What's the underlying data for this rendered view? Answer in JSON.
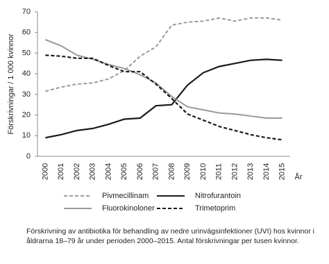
{
  "chart_data": {
    "type": "line",
    "y_label": "Förskrivningar / 1 000 kvinnor",
    "x_label": "År",
    "categories": [
      "2000",
      "2001",
      "2002",
      "2003",
      "2004",
      "2005",
      "2006",
      "2007",
      "2008",
      "2009",
      "2010",
      "2011",
      "2012",
      "2013",
      "2014",
      "2015"
    ],
    "ylim": [
      0,
      70
    ],
    "yticks": [
      0,
      10,
      20,
      30,
      40,
      50,
      60,
      70
    ],
    "series": [
      {
        "name": "Pivmecillinam",
        "color": "#999999",
        "dashed": true,
        "values": [
          31.5,
          33.5,
          35,
          35.5,
          37.5,
          41.5,
          48.5,
          53,
          63.5,
          65,
          65.5,
          67,
          65.5,
          67,
          67,
          66
        ]
      },
      {
        "name": "Nitrofurantoin",
        "color": "#1a1a1a",
        "dashed": false,
        "values": [
          9,
          10.5,
          12.5,
          13.5,
          15.5,
          18,
          18.5,
          24.5,
          25,
          34.5,
          40.5,
          43.5,
          45,
          46.5,
          47,
          46.5
        ]
      },
      {
        "name": "Fluorokinoloner",
        "color": "#999999",
        "dashed": false,
        "values": [
          56.5,
          53.5,
          49,
          47,
          44.5,
          42.5,
          39.5,
          35.5,
          29,
          24,
          22.5,
          21,
          20.5,
          19.5,
          18.5,
          18.5
        ]
      },
      {
        "name": "Trimetoprim",
        "color": "#1a1a1a",
        "dashed": true,
        "values": [
          49,
          48.5,
          47.5,
          47.5,
          44,
          41,
          41,
          35,
          28,
          20.5,
          17.5,
          14.5,
          12.5,
          10.5,
          9,
          8
        ]
      }
    ]
  },
  "caption": "Förskrivning av antibiotika för behandling av nedre urinvägsinfektioner (UVI) hos kvinnor i åldrarna 18–79 år under perioden 2000–2015. Antal förskrivningar per tusen kvinnor."
}
